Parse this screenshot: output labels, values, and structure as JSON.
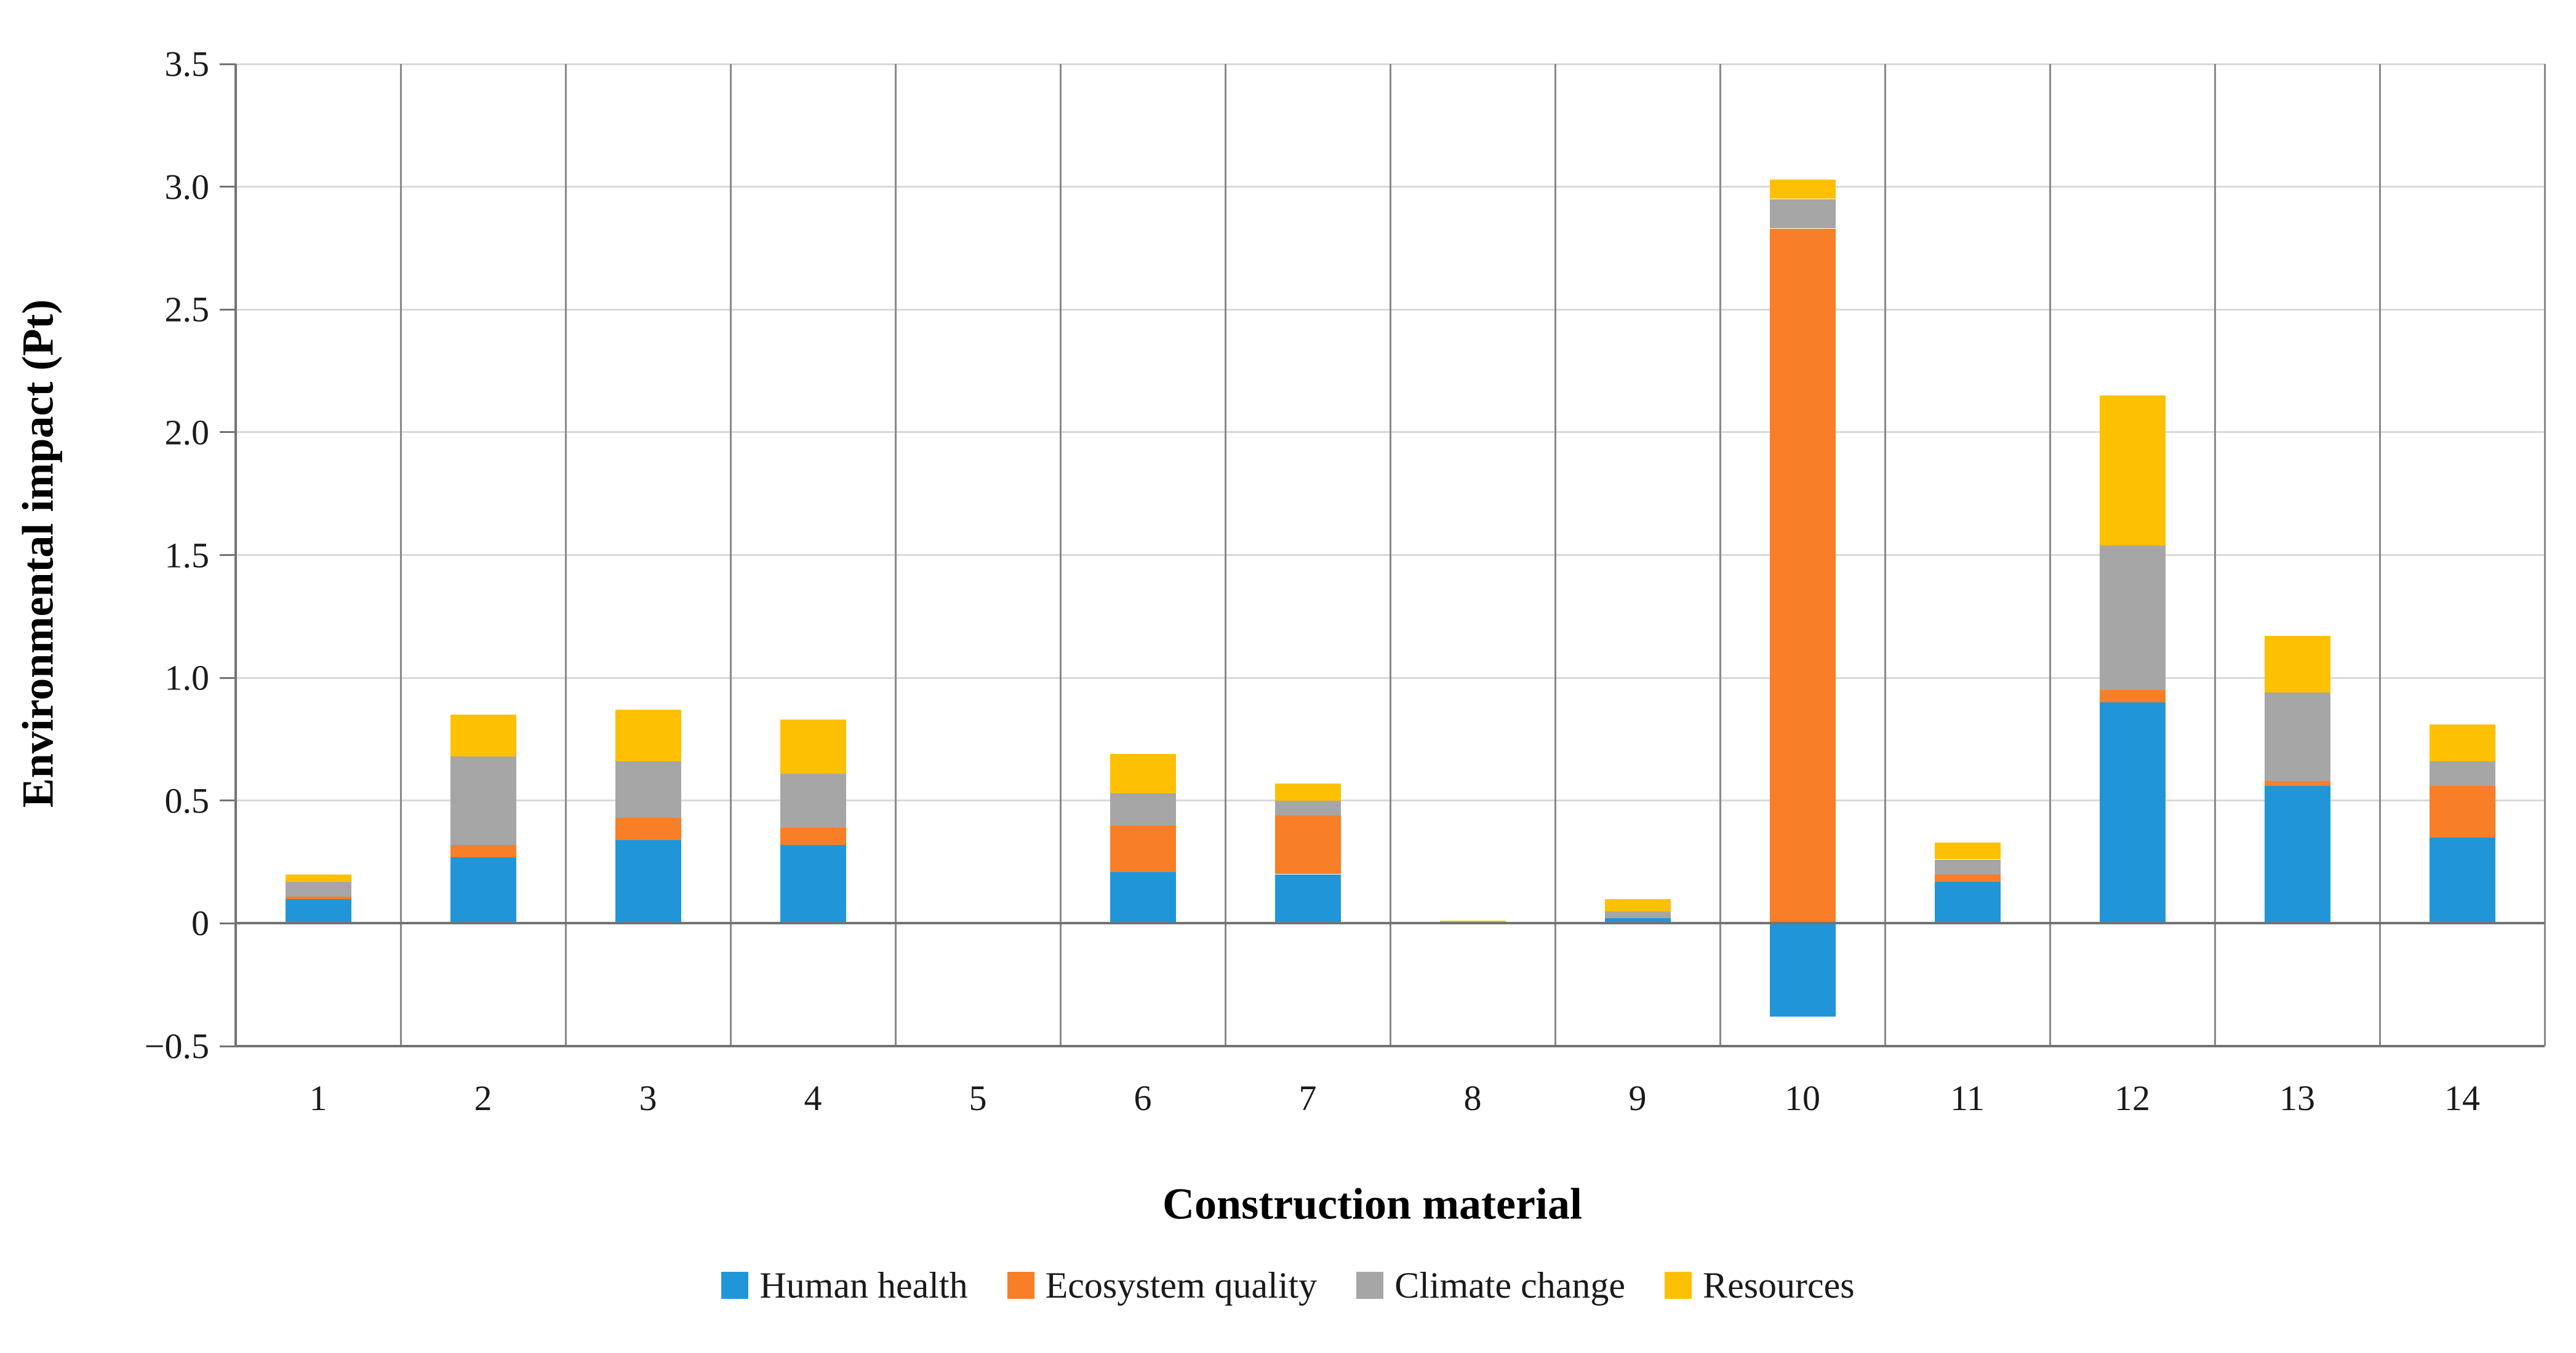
{
  "figure": {
    "y_axis_title": "Environmental impact (Pt)",
    "x_axis_title": "Construction material"
  },
  "chart_data": {
    "type": "bar",
    "stacked": true,
    "title": "",
    "xlabel": "Construction material",
    "ylabel": "Environmental impact (Pt)",
    "ylim": [
      -0.5,
      3.5
    ],
    "ytick_step": 0.5,
    "ytick_labels": [
      "3.5",
      "3.0",
      "2.5",
      "2.0",
      "1.5",
      "1.0",
      "0.5",
      "0",
      "−0.5"
    ],
    "grid": {
      "horizontal": true,
      "vertical": true
    },
    "legend_position": "bottom",
    "categories": [
      "1",
      "2",
      "3",
      "4",
      "5",
      "6",
      "7",
      "8",
      "9",
      "10",
      "11",
      "12",
      "13",
      "14"
    ],
    "series": [
      {
        "name": "Human health",
        "color": "#2096d8",
        "values": [
          0.1,
          0.27,
          0.34,
          0.32,
          0,
          0.21,
          0.2,
          0,
          0.02,
          -0.38,
          0.17,
          0.9,
          0.56,
          0.35
        ]
      },
      {
        "name": "Ecosystem quality",
        "color": "#f87e27",
        "values": [
          0.01,
          0.05,
          0.09,
          0.07,
          0,
          0.19,
          0.24,
          0,
          0,
          2.83,
          0.03,
          0.05,
          0.02,
          0.21
        ]
      },
      {
        "name": "Climate change",
        "color": "#a6a6a6",
        "values": [
          0.06,
          0.36,
          0.23,
          0.22,
          0,
          0.13,
          0.06,
          0,
          0.03,
          0.12,
          0.06,
          0.59,
          0.36,
          0.1
        ]
      },
      {
        "name": "Resources",
        "color": "#fec002",
        "values": [
          0.03,
          0.17,
          0.21,
          0.22,
          0,
          0.16,
          0.07,
          0.01,
          0.05,
          0.08,
          0.07,
          0.61,
          0.23,
          0.15
        ]
      }
    ]
  }
}
